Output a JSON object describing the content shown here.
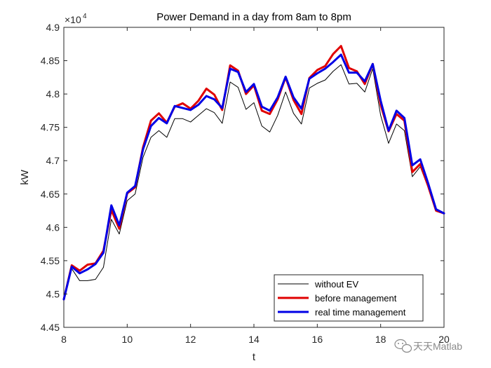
{
  "chart_data": {
    "type": "line",
    "title": "Power Demand in a day from 8am to 8pm",
    "xlabel": "t",
    "ylabel": "kW",
    "xlim": [
      8,
      20
    ],
    "ylim": [
      4.45,
      4.9
    ],
    "y_exponent_base": "×10",
    "y_exponent_power": "4",
    "xticks": [
      "8",
      "10",
      "12",
      "14",
      "16",
      "18",
      "20"
    ],
    "yticks": [
      "4.45",
      "4.5",
      "4.55",
      "4.6",
      "4.65",
      "4.7",
      "4.75",
      "4.8",
      "4.85",
      "4.9"
    ],
    "grid": false,
    "legend_position": "bottom-right",
    "x": [
      8,
      8.25,
      8.5,
      8.75,
      9,
      9.25,
      9.5,
      9.75,
      10,
      10.25,
      10.5,
      10.75,
      11,
      11.25,
      11.5,
      11.75,
      12,
      12.25,
      12.5,
      12.75,
      13,
      13.25,
      13.5,
      13.75,
      14,
      14.25,
      14.5,
      14.75,
      15,
      15.25,
      15.5,
      15.75,
      16,
      16.25,
      16.5,
      16.75,
      17,
      17.25,
      17.5,
      17.75,
      18,
      18.25,
      18.5,
      18.75,
      19,
      19.25,
      19.5,
      19.75,
      20
    ],
    "series": [
      {
        "name": "without EV",
        "color": "#000000",
        "width": 1,
        "values": [
          4.492,
          4.538,
          4.52,
          4.52,
          4.522,
          4.54,
          4.612,
          4.59,
          4.64,
          4.65,
          4.705,
          4.735,
          4.745,
          4.735,
          4.763,
          4.763,
          4.758,
          4.768,
          4.778,
          4.772,
          4.756,
          4.818,
          4.81,
          4.777,
          4.787,
          4.752,
          4.743,
          4.768,
          4.803,
          4.771,
          4.755,
          4.809,
          4.816,
          4.821,
          4.834,
          4.844,
          4.815,
          4.816,
          4.803,
          4.838,
          4.768,
          4.726,
          4.755,
          4.745,
          4.676,
          4.691,
          4.66,
          4.625,
          4.621
        ]
      },
      {
        "name": "before management",
        "color": "#e00000",
        "width": 3,
        "values": [
          4.492,
          4.543,
          4.535,
          4.544,
          4.546,
          4.565,
          4.626,
          4.598,
          4.651,
          4.66,
          4.72,
          4.76,
          4.771,
          4.757,
          4.781,
          4.786,
          4.778,
          4.79,
          4.808,
          4.799,
          4.776,
          4.843,
          4.835,
          4.8,
          4.813,
          4.775,
          4.77,
          4.792,
          4.825,
          4.791,
          4.77,
          4.824,
          4.836,
          4.842,
          4.86,
          4.872,
          4.839,
          4.834,
          4.815,
          4.845,
          4.784,
          4.744,
          4.77,
          4.76,
          4.683,
          4.695,
          4.662,
          4.625,
          4.621
        ]
      },
      {
        "name": "real time management",
        "color": "#0000e6",
        "width": 3,
        "values": [
          4.492,
          4.541,
          4.531,
          4.537,
          4.545,
          4.562,
          4.633,
          4.603,
          4.652,
          4.662,
          4.717,
          4.752,
          4.764,
          4.756,
          4.782,
          4.779,
          4.776,
          4.784,
          4.797,
          4.792,
          4.779,
          4.838,
          4.833,
          4.803,
          4.815,
          4.781,
          4.775,
          4.795,
          4.826,
          4.795,
          4.778,
          4.823,
          4.831,
          4.838,
          4.848,
          4.859,
          4.832,
          4.832,
          4.819,
          4.845,
          4.79,
          4.745,
          4.775,
          4.764,
          4.693,
          4.702,
          4.666,
          4.627,
          4.621
        ]
      }
    ]
  },
  "watermark": {
    "text": "天天Matlab"
  }
}
